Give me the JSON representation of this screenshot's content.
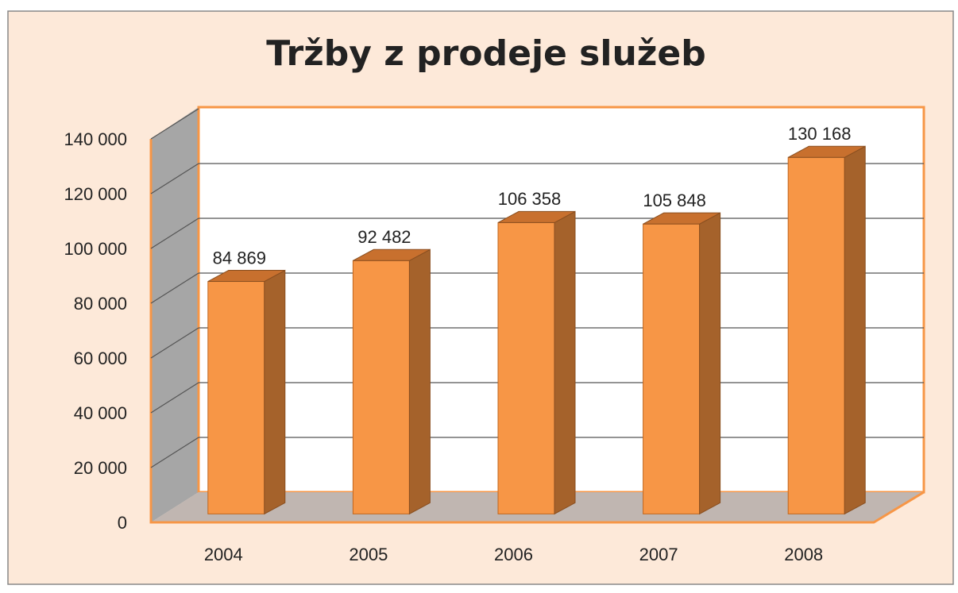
{
  "chart_data": {
    "type": "bar",
    "title": "Tržby z prodeje  služeb",
    "categories": [
      "2004",
      "2005",
      "2006",
      "2007",
      "2008"
    ],
    "values": [
      84869,
      92482,
      106358,
      105848,
      130168
    ],
    "value_labels": [
      "84 869",
      "92 482",
      "106 358",
      "105 848",
      "130 168"
    ],
    "color": "#f79646",
    "ylim": [
      0,
      140000
    ],
    "yticks": [
      0,
      {
        "value": 20000,
        "label": "20 000"
      },
      {
        "value": 40000,
        "label": "40 000"
      },
      {
        "value": 60000,
        "label": "60 000"
      },
      {
        "value": 80000,
        "label": "80 000"
      },
      {
        "value": 100000,
        "label": "100 000"
      },
      {
        "value": 120000,
        "label": "120 000"
      },
      {
        "value": 140000,
        "label": "140 000"
      }
    ],
    "grid": true
  }
}
